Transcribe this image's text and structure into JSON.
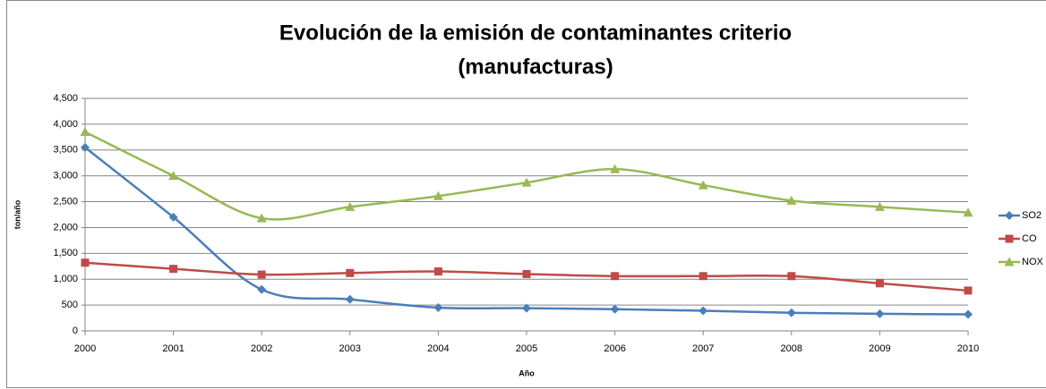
{
  "chart_data": {
    "type": "line",
    "title": [
      "Evolución de la emisión de contaminantes criterio",
      "(manufacturas)"
    ],
    "x_label": "Año",
    "y_label": "ton/año",
    "categories": [
      "2000",
      "2001",
      "2002",
      "2003",
      "2004",
      "2005",
      "2006",
      "2007",
      "2008",
      "2009",
      "2010"
    ],
    "series": [
      {
        "name": "SO2",
        "color": "#4a7ebb",
        "marker": "diamond",
        "values": [
          3550,
          2200,
          800,
          610,
          450,
          440,
          420,
          390,
          350,
          330,
          320
        ]
      },
      {
        "name": "CO",
        "color": "#be4b48",
        "marker": "square",
        "values": [
          1320,
          1200,
          1090,
          1120,
          1150,
          1100,
          1060,
          1060,
          1060,
          920,
          780
        ]
      },
      {
        "name": "NOX",
        "color": "#98b954",
        "marker": "triangle",
        "values": [
          3850,
          3000,
          2180,
          2400,
          2610,
          2870,
          3130,
          2820,
          2520,
          2400,
          2290
        ]
      }
    ],
    "ylim": [
      0,
      4500
    ],
    "yticks": [
      0,
      500,
      {
        "value": 1000,
        "label": "1,000"
      },
      {
        "value": 1500,
        "label": "1,500"
      },
      {
        "value": 2000,
        "label": "2,000"
      },
      {
        "value": 2500,
        "label": "2,500"
      },
      {
        "value": 3000,
        "label": "3,000"
      },
      {
        "value": 3500,
        "label": "3,500"
      },
      {
        "value": 4000,
        "label": "4,000"
      },
      {
        "value": 4500,
        "label": "4,500"
      }
    ],
    "grid": true,
    "smooth": true,
    "legend": "right"
  }
}
